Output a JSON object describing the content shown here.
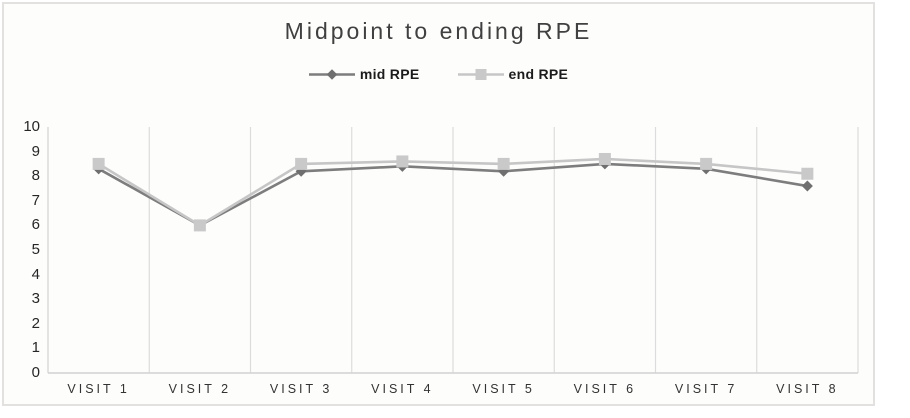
{
  "chart_data": {
    "type": "line",
    "title": "Midpoint to ending RPE",
    "categories": [
      "VISIT 1",
      "VISIT 2",
      "VISIT 3",
      "VISIT 4",
      "VISIT 5",
      "VISIT 6",
      "VISIT 7",
      "VISIT 8"
    ],
    "series": [
      {
        "name": "mid RPE",
        "marker": "diamond",
        "color": "#7d7d7d",
        "marker_color": "#6f6f6f",
        "values": [
          8.3,
          6,
          8.2,
          8.4,
          8.2,
          8.5,
          8.3,
          7.6
        ]
      },
      {
        "name": "end RPE",
        "marker": "square",
        "color": "#c6c6c6",
        "marker_color": "#c9c9c9",
        "values": [
          8.5,
          6,
          8.5,
          8.6,
          8.5,
          8.7,
          8.5,
          8.1
        ]
      }
    ],
    "ylim": [
      0,
      10
    ],
    "ytick_step": 1,
    "grid": "vertical-only",
    "grid_color": "#dcdcdc",
    "axis_color": "#d2d2d2",
    "legend_position": "top"
  }
}
